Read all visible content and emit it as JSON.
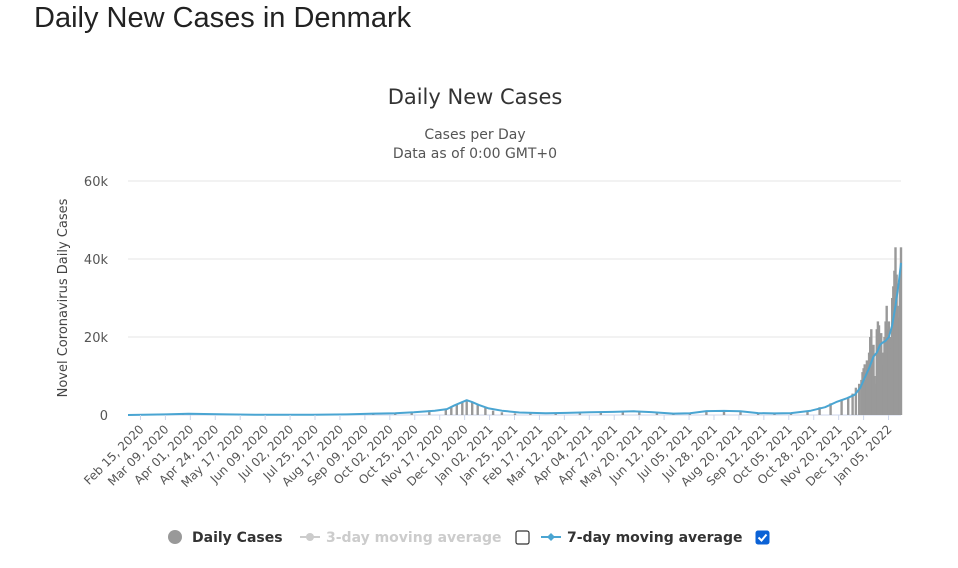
{
  "page": {
    "title": "Daily New Cases in Denmark"
  },
  "chart_data": {
    "type": "bar",
    "title": "Daily New Cases",
    "subtitle_line1": "Cases per Day",
    "subtitle_line2": "Data as of 0:00 GMT+0",
    "xlabel": "",
    "ylabel": "Novel Coronavirus Daily Cases",
    "ylim": [
      0,
      60000
    ],
    "y_ticks": [
      {
        "value": 0,
        "label": "0"
      },
      {
        "value": 20000,
        "label": "20k"
      },
      {
        "value": 40000,
        "label": "40k"
      },
      {
        "value": 60000,
        "label": "60k"
      }
    ],
    "x_start": "2020-02-15",
    "x_end": "2022-01-18",
    "x_tick_labels": [
      "Feb 15, 2020",
      "Mar 09, 2020",
      "Apr 01, 2020",
      "Apr 24, 2020",
      "May 17, 2020",
      "Jun 09, 2020",
      "Jul 02, 2020",
      "Jul 25, 2020",
      "Aug 17, 2020",
      "Sep 09, 2020",
      "Oct 02, 2020",
      "Oct 25, 2020",
      "Nov 17, 2020",
      "Dec 10, 2020",
      "Jan 02, 2021",
      "Jan 25, 2021",
      "Feb 17, 2021",
      "Mar 12, 2021",
      "Apr 04, 2021",
      "Apr 27, 2021",
      "May 20, 2021",
      "Jun 12, 2021",
      "Jul 05, 2021",
      "Jul 28, 2021",
      "Aug 20, 2021",
      "Sep 12, 2021",
      "Oct 05, 2021",
      "Oct 28, 2021",
      "Nov 20, 2021",
      "Dec 13, 2021",
      "Jan 05, 2022"
    ],
    "series": [
      {
        "name": "Daily Cases",
        "kind": "bar",
        "color": "#999999",
        "x": [
          "2020-02-15",
          "2020-03-15",
          "2020-04-05",
          "2020-04-25",
          "2020-06-01",
          "2020-07-15",
          "2020-08-15",
          "2020-09-10",
          "2020-09-25",
          "2020-10-15",
          "2020-10-30",
          "2020-11-15",
          "2020-11-30",
          "2020-12-05",
          "2020-12-10",
          "2020-12-15",
          "2020-12-19",
          "2020-12-24",
          "2020-12-29",
          "2021-01-05",
          "2021-01-12",
          "2021-01-20",
          "2021-02-01",
          "2021-02-15",
          "2021-03-10",
          "2021-04-01",
          "2021-04-20",
          "2021-05-10",
          "2021-05-25",
          "2021-06-10",
          "2021-06-25",
          "2021-07-10",
          "2021-07-25",
          "2021-08-10",
          "2021-08-25",
          "2021-09-10",
          "2021-09-25",
          "2021-10-10",
          "2021-10-25",
          "2021-11-05",
          "2021-11-15",
          "2021-11-25",
          "2021-12-01",
          "2021-12-05",
          "2021-12-08",
          "2021-12-11",
          "2021-12-13",
          "2021-12-14",
          "2021-12-15",
          "2021-12-16",
          "2021-12-17",
          "2021-12-18",
          "2021-12-19",
          "2021-12-20",
          "2021-12-21",
          "2021-12-22",
          "2021-12-23",
          "2021-12-24",
          "2021-12-25",
          "2021-12-26",
          "2021-12-27",
          "2021-12-28",
          "2021-12-29",
          "2021-12-30",
          "2021-12-31",
          "2022-01-01",
          "2022-01-02",
          "2022-01-03",
          "2022-01-04",
          "2022-01-05",
          "2022-01-06",
          "2022-01-07",
          "2022-01-08",
          "2022-01-09",
          "2022-01-10",
          "2022-01-11",
          "2022-01-12",
          "2022-01-13",
          "2022-01-14",
          "2022-01-15",
          "2022-01-16",
          "2022-01-17",
          "2022-01-18"
        ],
        "values": [
          0,
          100,
          300,
          150,
          60,
          30,
          60,
          150,
          400,
          450,
          700,
          1200,
          1300,
          2000,
          2800,
          3500,
          3800,
          3200,
          2700,
          1800,
          1100,
          700,
          400,
          350,
          600,
          700,
          800,
          900,
          1000,
          500,
          300,
          600,
          1100,
          1000,
          900,
          500,
          500,
          500,
          900,
          2000,
          3000,
          4000,
          4500,
          5500,
          7000,
          8000,
          9000,
          11000,
          12000,
          13000,
          9000,
          14000,
          12000,
          16000,
          20000,
          22000,
          15000,
          18000,
          10000,
          8000,
          22000,
          24000,
          23000,
          20000,
          21000,
          16000,
          13000,
          20000,
          24000,
          28000,
          22000,
          24000,
          20000,
          17000,
          30000,
          33000,
          37000,
          43000,
          36000,
          28000,
          25000,
          35000,
          43000
        ]
      },
      {
        "name": "3-day moving average",
        "kind": "line",
        "color": "#cccccc",
        "enabled": false
      },
      {
        "name": "7-day moving average",
        "kind": "line",
        "color": "#4aa5d2",
        "enabled": true,
        "x": [
          "2020-02-15",
          "2020-03-20",
          "2020-04-10",
          "2020-05-15",
          "2020-06-15",
          "2020-08-01",
          "2020-09-01",
          "2020-09-25",
          "2020-10-15",
          "2020-11-01",
          "2020-11-20",
          "2020-12-01",
          "2020-12-08",
          "2020-12-15",
          "2020-12-19",
          "2020-12-24",
          "2020-12-30",
          "2021-01-08",
          "2021-01-20",
          "2021-02-05",
          "2021-03-01",
          "2021-03-20",
          "2021-04-10",
          "2021-05-01",
          "2021-05-20",
          "2021-06-05",
          "2021-06-25",
          "2021-07-10",
          "2021-07-25",
          "2021-08-10",
          "2021-08-25",
          "2021-09-10",
          "2021-09-25",
          "2021-10-10",
          "2021-10-28",
          "2021-11-10",
          "2021-11-20",
          "2021-11-30",
          "2021-12-07",
          "2021-12-12",
          "2021-12-16",
          "2021-12-20",
          "2021-12-24",
          "2021-12-27",
          "2021-12-30",
          "2022-01-01",
          "2022-01-04",
          "2022-01-07",
          "2022-01-10",
          "2022-01-13",
          "2022-01-16",
          "2022-01-18"
        ],
        "values": [
          0,
          150,
          300,
          150,
          60,
          80,
          150,
          350,
          450,
          700,
          1100,
          1500,
          2500,
          3300,
          3800,
          3300,
          2600,
          1700,
          1100,
          650,
          450,
          550,
          700,
          800,
          950,
          750,
          350,
          450,
          1000,
          1050,
          950,
          500,
          400,
          500,
          1100,
          2000,
          3300,
          4300,
          5200,
          7000,
          9500,
          12000,
          15000,
          16000,
          18000,
          18500,
          19000,
          20000,
          23000,
          28000,
          34000,
          39000
        ]
      }
    ],
    "legend": [
      {
        "label": "Daily Cases",
        "color": "#999999",
        "text_color": "#333333"
      },
      {
        "label": "3-day moving average",
        "color": "#cccccc",
        "text_color": "#cccccc",
        "checked": false
      },
      {
        "label": "7-day moving average",
        "color": "#4aa5d2",
        "text_color": "#333333",
        "checked": true
      }
    ],
    "grid": true,
    "legend_position": "bottom"
  }
}
